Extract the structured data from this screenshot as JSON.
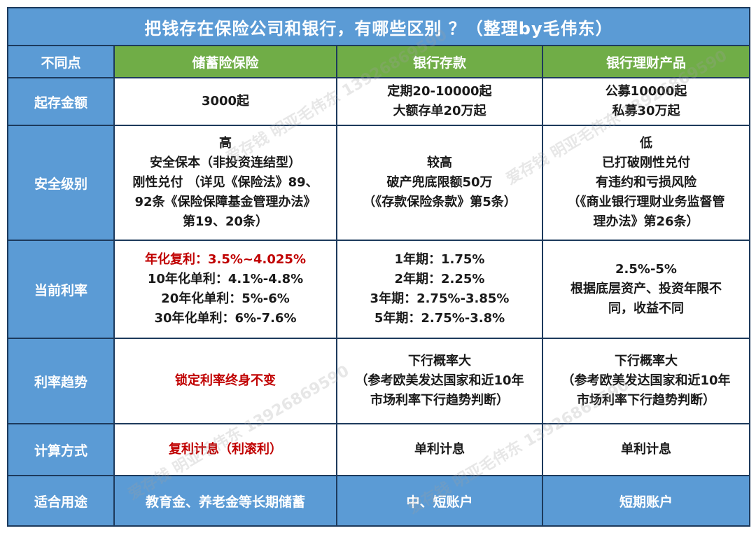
{
  "title": "把钱存在保险公司和银行，有哪些区别 ？（整理by毛伟东）",
  "headers": [
    "不同点",
    "储蓄险保险",
    "银行存款",
    "银行理财产品"
  ],
  "rows": [
    {
      "label": "起存金额",
      "cells": [
        {
          "lines": [
            "3000起"
          ],
          "red": []
        },
        {
          "lines": [
            "定期20-10000起",
            "大额存单20万起"
          ],
          "red": []
        },
        {
          "lines": [
            "公募10000起",
            "私募30万起"
          ],
          "red": []
        }
      ]
    },
    {
      "label": "安全级别",
      "cells": [
        {
          "lines": [
            "高",
            "安全保本（非投资连结型）",
            "刚性兑付 （详见《保险法》89、",
            "92条《保险保障基金管理办法》",
            "第19、20条）"
          ],
          "red": []
        },
        {
          "lines": [
            "较高",
            "破产兜底限额50万",
            "（《存款保险条款》第5条）"
          ],
          "red": []
        },
        {
          "lines": [
            "低",
            "已打破刚性兑付",
            "有违约和亏损风险",
            "（《商业银行理财业务监督管",
            "理办法》第26条）"
          ],
          "red": []
        }
      ]
    },
    {
      "label": "当前利率",
      "cells": [
        {
          "lines": [
            "年化复利：3.5%~4.025%",
            "10年化单利：4.1%-4.8%",
            "20年化单利：5%-6%",
            "30年化单利：6%-7.6%"
          ],
          "red": [
            0
          ]
        },
        {
          "lines": [
            "1年期：1.75%",
            "2年期：2.25%",
            "3年期：2.75%-3.85%",
            "5年期：2.75%-3.8%"
          ],
          "red": []
        },
        {
          "lines": [
            "2.5%-5%",
            "根据底层资产、投资年限不",
            "同，收益不同"
          ],
          "red": []
        }
      ]
    },
    {
      "label": "利率趋势",
      "cells": [
        {
          "lines": [
            "锁定利率终身不变"
          ],
          "red": [
            0
          ]
        },
        {
          "lines": [
            "下行概率大",
            "（参考欧美发达国家和近10年",
            "市场利率下行趋势判断）"
          ],
          "red": []
        },
        {
          "lines": [
            "下行概率大",
            "（参考欧美发达国家和近10年",
            "市场利率下行趋势判断）"
          ],
          "red": []
        }
      ]
    },
    {
      "label": "计算方式",
      "cells": [
        {
          "lines": [
            "复利计息（利滚利）"
          ],
          "red": [
            0
          ]
        },
        {
          "lines": [
            "单利计息"
          ],
          "red": []
        },
        {
          "lines": [
            "单利计息"
          ],
          "red": []
        }
      ]
    }
  ],
  "footer": {
    "label": "适合用途",
    "cells": [
      "教育金、养老金等长期储蓄",
      "中、短账户",
      "短期账户"
    ]
  },
  "watermark": "爱存钱 明亚毛伟东 13926869590",
  "colors": {
    "header_blue": "#5b9bd5",
    "header_green": "#70ad47",
    "border": "#1d3a5c",
    "accent_red": "#c00000"
  }
}
